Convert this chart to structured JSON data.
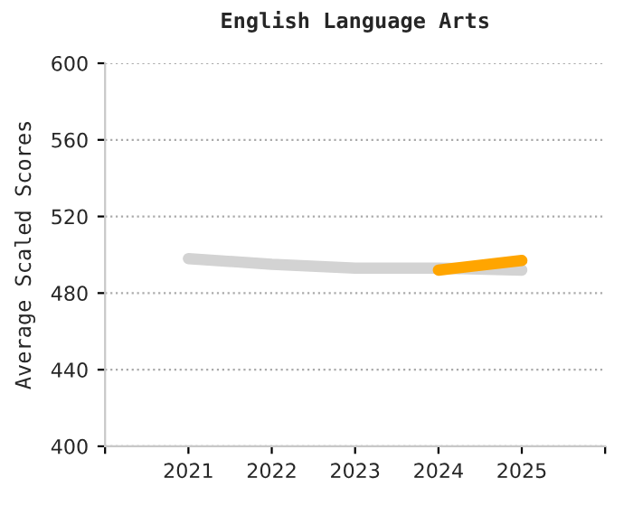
{
  "chart_data": {
    "type": "line",
    "title": "English Language Arts",
    "ylabel": "Average Scaled Scores",
    "categories": [
      "2021",
      "2022",
      "2023",
      "2024",
      "2025"
    ],
    "series": [
      {
        "color": "#d3d3d3",
        "values": [
          498,
          495,
          493,
          493,
          492
        ]
      },
      {
        "color": "#ffa500",
        "values": [
          null,
          null,
          null,
          492,
          497
        ]
      }
    ],
    "ylim": [
      400,
      600
    ],
    "yticks": [
      400,
      440,
      480,
      520,
      560,
      600
    ],
    "grid": "y",
    "legend": false,
    "marker": "none",
    "line_style": "solid"
  }
}
